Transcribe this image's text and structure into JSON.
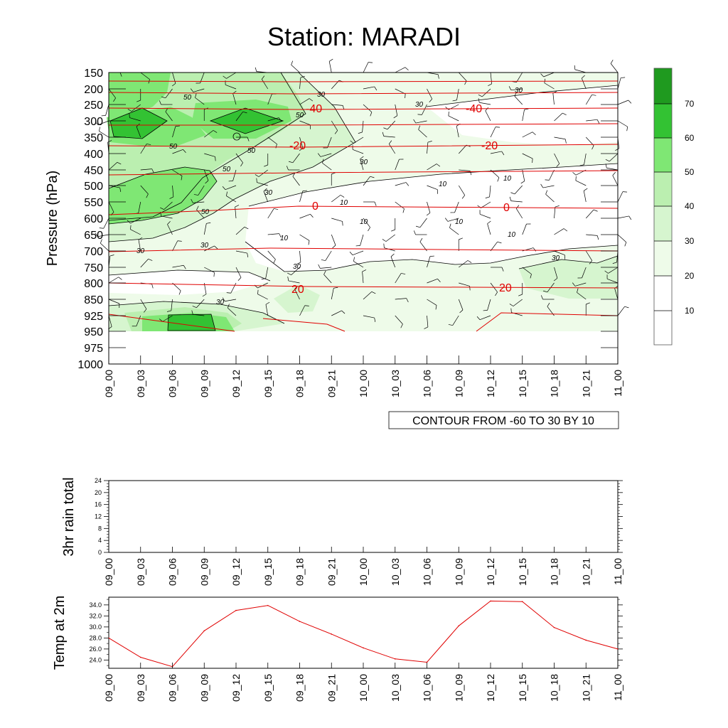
{
  "title": "Station: MARADI",
  "colors": {
    "temp_line": "#e00000",
    "fill_20": "#f0fcee",
    "fill_30": "#d9f7d3",
    "fill_40": "#bdf1b3",
    "fill_50": "#7ee874",
    "fill_60": "#33c233",
    "fill_70": "#1f9a1f"
  },
  "chart_data": [
    {
      "name": "main",
      "type": "heatmap",
      "title": "Station: MARADI",
      "ylabel": "Pressure (hPa)",
      "y_ticks": [
        "150",
        "200",
        "250",
        "300",
        "350",
        "400",
        "450",
        "500",
        "550",
        "600",
        "650",
        "700",
        "750",
        "800",
        "850",
        "925",
        "950",
        "975",
        "1000"
      ],
      "x_ticks": [
        "09_00",
        "09_03",
        "09_06",
        "09_09",
        "09_12",
        "09_15",
        "09_18",
        "09_21",
        "10_00",
        "10_03",
        "10_06",
        "10_09",
        "10_12",
        "10_15",
        "10_18",
        "10_21",
        "11_00"
      ],
      "info_box": "CONTOUR FROM -60 TO 30 BY 10",
      "colorbar_levels": [
        "10",
        "20",
        "30",
        "40",
        "50",
        "60",
        "70"
      ],
      "wind_contour_labels": [
        "30",
        "30",
        "30",
        "50",
        "50",
        "50",
        "50",
        "50",
        "50",
        "30",
        "30",
        "10",
        "10",
        "10",
        "10",
        "10",
        "10",
        "10",
        "30",
        "30",
        "30",
        "30",
        "30"
      ],
      "temp_contour_labels": [
        "-40",
        "-40",
        "-20",
        "-20",
        "0",
        "0",
        "20",
        "20"
      ]
    },
    {
      "name": "rain",
      "type": "line",
      "ylabel": "3hr rain total",
      "y_ticks": [
        "0",
        "4",
        "8",
        "12",
        "16",
        "20",
        "24"
      ],
      "ylim": [
        0,
        24
      ],
      "x_ticks": [
        "09_00",
        "09_03",
        "09_06",
        "09_09",
        "09_12",
        "09_15",
        "09_18",
        "09_21",
        "10_00",
        "10_03",
        "10_06",
        "10_09",
        "10_12",
        "10_15",
        "10_18",
        "10_21",
        "11_00"
      ],
      "values": []
    },
    {
      "name": "temp",
      "type": "line",
      "ylabel": "Temp at 2m",
      "y_ticks": [
        "24.0",
        "26.0",
        "28.0",
        "30.0",
        "32.0",
        "34.0"
      ],
      "ylim": [
        22.5,
        35.4
      ],
      "x_ticks": [
        "09_00",
        "09_03",
        "09_06",
        "09_09",
        "09_12",
        "09_15",
        "09_18",
        "09_21",
        "10_00",
        "10_03",
        "10_06",
        "10_09",
        "10_12",
        "10_15",
        "10_18",
        "10_21",
        "11_00"
      ],
      "values": [
        28.0,
        24.5,
        22.8,
        29.3,
        33.0,
        33.9,
        31.0,
        28.7,
        26.2,
        24.2,
        23.6,
        30.2,
        34.7,
        34.6,
        29.9,
        27.6,
        26.0
      ]
    }
  ]
}
